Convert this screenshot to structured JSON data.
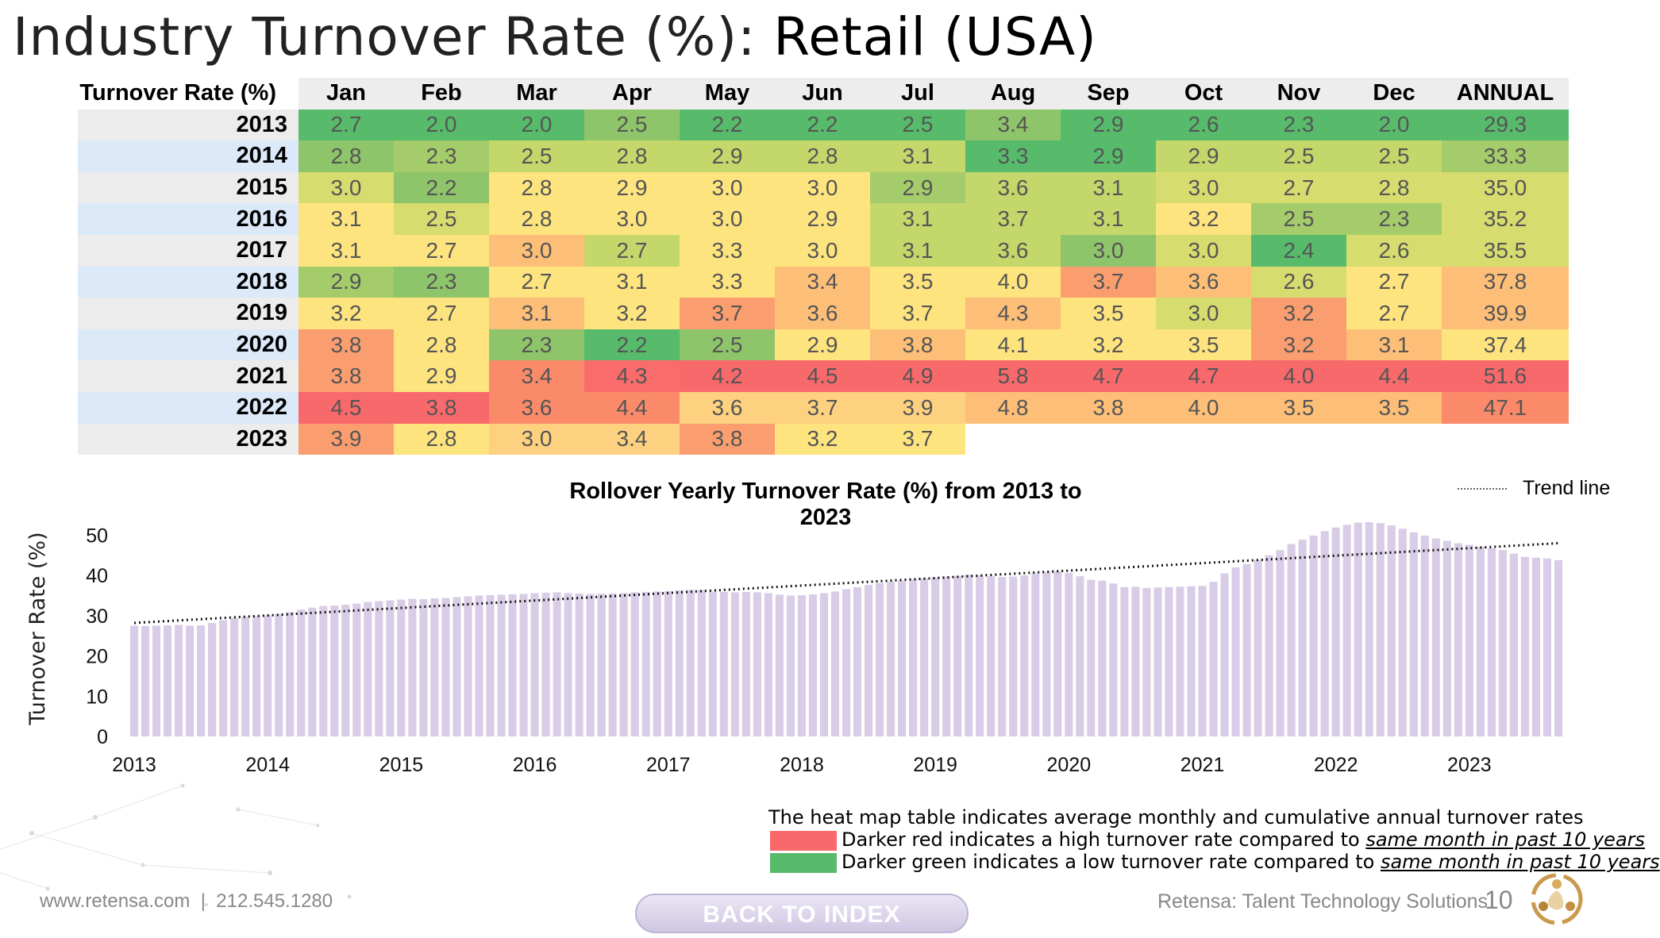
{
  "title": {
    "prefix": "Industry Turnover Rate (%): ",
    "subject": "Retail (USA)"
  },
  "heatmap": {
    "corner_label": "Turnover Rate (%)",
    "columns": [
      "Jan",
      "Feb",
      "Mar",
      "Apr",
      "May",
      "Jun",
      "Jul",
      "Aug",
      "Sep",
      "Oct",
      "Nov",
      "Dec",
      "ANNUAL"
    ],
    "rows": [
      {
        "year": "2013",
        "values": [
          "2.7",
          "2.0",
          "2.0",
          "2.5",
          "2.2",
          "2.2",
          "2.5",
          "3.4",
          "2.9",
          "2.6",
          "2.3",
          "2.0",
          "29.3"
        ],
        "colors": [
          "#57bb6b",
          "#57bb6b",
          "#57bb6b",
          "#8ec46a",
          "#57bb6b",
          "#57bb6b",
          "#57bb6b",
          "#8ec46a",
          "#57bb6b",
          "#57bb6b",
          "#57bb6b",
          "#57bb6b",
          "#57bb6b"
        ]
      },
      {
        "year": "2014",
        "values": [
          "2.8",
          "2.3",
          "2.5",
          "2.8",
          "2.9",
          "2.8",
          "3.1",
          "3.3",
          "2.9",
          "2.9",
          "2.5",
          "2.5",
          "33.3"
        ],
        "colors": [
          "#8ec46a",
          "#a5cc6a",
          "#c4d76b",
          "#c4d76b",
          "#c4d76b",
          "#c4d76b",
          "#c4d76b",
          "#57bb6b",
          "#57bb6b",
          "#c4d76b",
          "#c4d76b",
          "#c4d76b",
          "#a5cc6a"
        ]
      },
      {
        "year": "2015",
        "values": [
          "3.0",
          "2.2",
          "2.8",
          "2.9",
          "3.0",
          "3.0",
          "2.9",
          "3.6",
          "3.1",
          "3.0",
          "2.7",
          "2.8",
          "35.0"
        ],
        "colors": [
          "#d6dc6e",
          "#8ec46a",
          "#fde47f",
          "#fde47f",
          "#fde47f",
          "#fde47f",
          "#a5cc6a",
          "#c4d76b",
          "#c4d76b",
          "#d6dc6e",
          "#d6dc6e",
          "#d6dc6e",
          "#d6dc6e"
        ]
      },
      {
        "year": "2016",
        "values": [
          "3.1",
          "2.5",
          "2.8",
          "3.0",
          "3.0",
          "2.9",
          "3.1",
          "3.7",
          "3.1",
          "3.2",
          "2.5",
          "2.3",
          "35.2"
        ],
        "colors": [
          "#fde47f",
          "#d6dc6e",
          "#fde47f",
          "#fde47f",
          "#fde47f",
          "#fde47f",
          "#c4d76b",
          "#c4d76b",
          "#c4d76b",
          "#fde47f",
          "#a5cc6a",
          "#a5cc6a",
          "#d6dc6e"
        ]
      },
      {
        "year": "2017",
        "values": [
          "3.1",
          "2.7",
          "3.0",
          "2.7",
          "3.3",
          "3.0",
          "3.1",
          "3.6",
          "3.0",
          "3.0",
          "2.4",
          "2.6",
          "35.5"
        ],
        "colors": [
          "#fde47f",
          "#fde47f",
          "#fdbf78",
          "#c4d76b",
          "#fde47f",
          "#fde47f",
          "#c4d76b",
          "#c4d76b",
          "#8ec46a",
          "#d6dc6e",
          "#57bb6b",
          "#d6dc6e",
          "#d6dc6e"
        ]
      },
      {
        "year": "2018",
        "values": [
          "2.9",
          "2.3",
          "2.7",
          "3.1",
          "3.3",
          "3.4",
          "3.5",
          "4.0",
          "3.7",
          "3.6",
          "2.6",
          "2.7",
          "37.8"
        ],
        "colors": [
          "#a5cc6a",
          "#8ec46a",
          "#fde47f",
          "#fde47f",
          "#fde47f",
          "#fdbf78",
          "#fde47f",
          "#fde47f",
          "#fa9e6f",
          "#fdbf78",
          "#d6dc6e",
          "#fde47f",
          "#fdbf78"
        ]
      },
      {
        "year": "2019",
        "values": [
          "3.2",
          "2.7",
          "3.1",
          "3.2",
          "3.7",
          "3.6",
          "3.7",
          "4.3",
          "3.5",
          "3.0",
          "3.2",
          "2.7",
          "39.9"
        ],
        "colors": [
          "#fde47f",
          "#fde47f",
          "#fdbf78",
          "#fde47f",
          "#fa9e6f",
          "#fdbf78",
          "#fde47f",
          "#fdbf78",
          "#fde47f",
          "#d6dc6e",
          "#fa9e6f",
          "#fde47f",
          "#fdbf78"
        ]
      },
      {
        "year": "2020",
        "values": [
          "3.8",
          "2.8",
          "2.3",
          "2.2",
          "2.5",
          "2.9",
          "3.8",
          "4.1",
          "3.2",
          "3.5",
          "3.2",
          "3.1",
          "37.4"
        ],
        "colors": [
          "#fa9e6f",
          "#fde47f",
          "#8ec46a",
          "#57bb6b",
          "#8ec46a",
          "#fde47f",
          "#fdbf78",
          "#fde47f",
          "#fde47f",
          "#fde47f",
          "#fa9e6f",
          "#fdbf78",
          "#fde47f"
        ]
      },
      {
        "year": "2021",
        "values": [
          "3.8",
          "2.9",
          "3.4",
          "4.3",
          "4.2",
          "4.5",
          "4.9",
          "5.8",
          "4.7",
          "4.7",
          "4.0",
          "4.4",
          "51.6"
        ],
        "colors": [
          "#fa9e6f",
          "#fde47f",
          "#fa8a6a",
          "#fa6b6b",
          "#f8696b",
          "#f8696b",
          "#f8696b",
          "#f8696b",
          "#f8696b",
          "#f8696b",
          "#f8696b",
          "#f8696b",
          "#f8696b"
        ]
      },
      {
        "year": "2022",
        "values": [
          "4.5",
          "3.8",
          "3.6",
          "4.4",
          "3.6",
          "3.7",
          "3.9",
          "4.8",
          "3.8",
          "4.0",
          "3.5",
          "3.5",
          "47.1"
        ],
        "colors": [
          "#f8696b",
          "#f8696b",
          "#fa8a6a",
          "#fa8a6a",
          "#fdd17f",
          "#fdd17f",
          "#fdd17f",
          "#fdbf78",
          "#fdbf78",
          "#fdbf78",
          "#fdbf78",
          "#fdbf78",
          "#fa8a6a"
        ]
      },
      {
        "year": "2023",
        "values": [
          "3.9",
          "2.8",
          "3.0",
          "3.4",
          "3.8",
          "3.2",
          "3.7",
          "",
          "",
          "",
          "",
          "",
          ""
        ],
        "colors": [
          "#fa9e6f",
          "#fde47f",
          "#fdd17f",
          "#fdd17f",
          "#fa9e6f",
          "#fde47f",
          "#fde47f",
          "",
          "",
          "",
          "",
          "",
          ""
        ]
      }
    ]
  },
  "chart_data": {
    "type": "bar",
    "title": "Rollover Yearly Turnover Rate (%) from 2013 to 2023",
    "ylabel": "Turnover Rate (%)",
    "xlabel": "",
    "ylim": [
      0,
      55
    ],
    "yticks": [
      0,
      10,
      20,
      30,
      40,
      50
    ],
    "x_tick_labels": [
      "2013",
      "2014",
      "2015",
      "2016",
      "2017",
      "2018",
      "2019",
      "2020",
      "2021",
      "2022",
      "2023"
    ],
    "x_start_label": "2013",
    "bar_color": "#d9cce6",
    "values": [
      27.5,
      27.4,
      27.5,
      27.6,
      27.7,
      27.5,
      27.6,
      28.2,
      28.9,
      29.4,
      29.7,
      29.9,
      30.1,
      30.4,
      30.9,
      31.5,
      32.0,
      32.4,
      32.5,
      32.7,
      33.0,
      33.4,
      33.6,
      33.8,
      34.0,
      34.2,
      34.1,
      34.3,
      34.4,
      34.6,
      34.8,
      35.0,
      35.1,
      35.2,
      35.3,
      35.4,
      35.6,
      35.7,
      35.8,
      35.6,
      35.5,
      35.4,
      35.5,
      35.5,
      35.6,
      35.8,
      35.9,
      36.0,
      36.1,
      36.3,
      36.4,
      36.4,
      36.0,
      35.9,
      35.8,
      35.9,
      35.8,
      35.6,
      35.2,
      35.0,
      35.1,
      35.3,
      35.6,
      36.0,
      36.6,
      37.1,
      37.6,
      38.1,
      38.4,
      38.7,
      39.0,
      39.3,
      39.5,
      39.7,
      39.9,
      40.2,
      40.0,
      39.8,
      39.6,
      39.7,
      40.0,
      40.5,
      40.8,
      41.0,
      40.6,
      39.8,
      38.9,
      38.7,
      38.0,
      37.1,
      37.2,
      36.9,
      37.0,
      37.1,
      37.2,
      37.3,
      37.4,
      38.4,
      40.5,
      42.0,
      42.8,
      43.8,
      45.0,
      46.3,
      47.8,
      48.9,
      49.9,
      51.0,
      51.9,
      52.6,
      53.1,
      53.2,
      53.0,
      52.4,
      51.6,
      50.7,
      49.9,
      49.2,
      48.6,
      48.0,
      47.6,
      47.1,
      46.8,
      46.3,
      45.4,
      44.6,
      44.4,
      44.2,
      43.8
    ],
    "trend_line": {
      "label": "Trend line",
      "start": 28.2,
      "end": 48.0
    }
  },
  "legend": {
    "intro": "The heat map table indicates average monthly and cumulative annual turnover rates",
    "red": {
      "color": "#f8696b",
      "text": "Darker red indicates a high turnover rate compared to ",
      "emph": "same month in past 10 years"
    },
    "green": {
      "color": "#57bb6b",
      "text": "Darker green indicates a low turnover rate compared to ",
      "emph": "same month in past 10 years"
    }
  },
  "footer": {
    "contact": "www.retensa.com  |  212.545.1280",
    "button": "BACK TO INDEX",
    "company": "Retensa: Talent Technology Solutions",
    "page": "10"
  }
}
